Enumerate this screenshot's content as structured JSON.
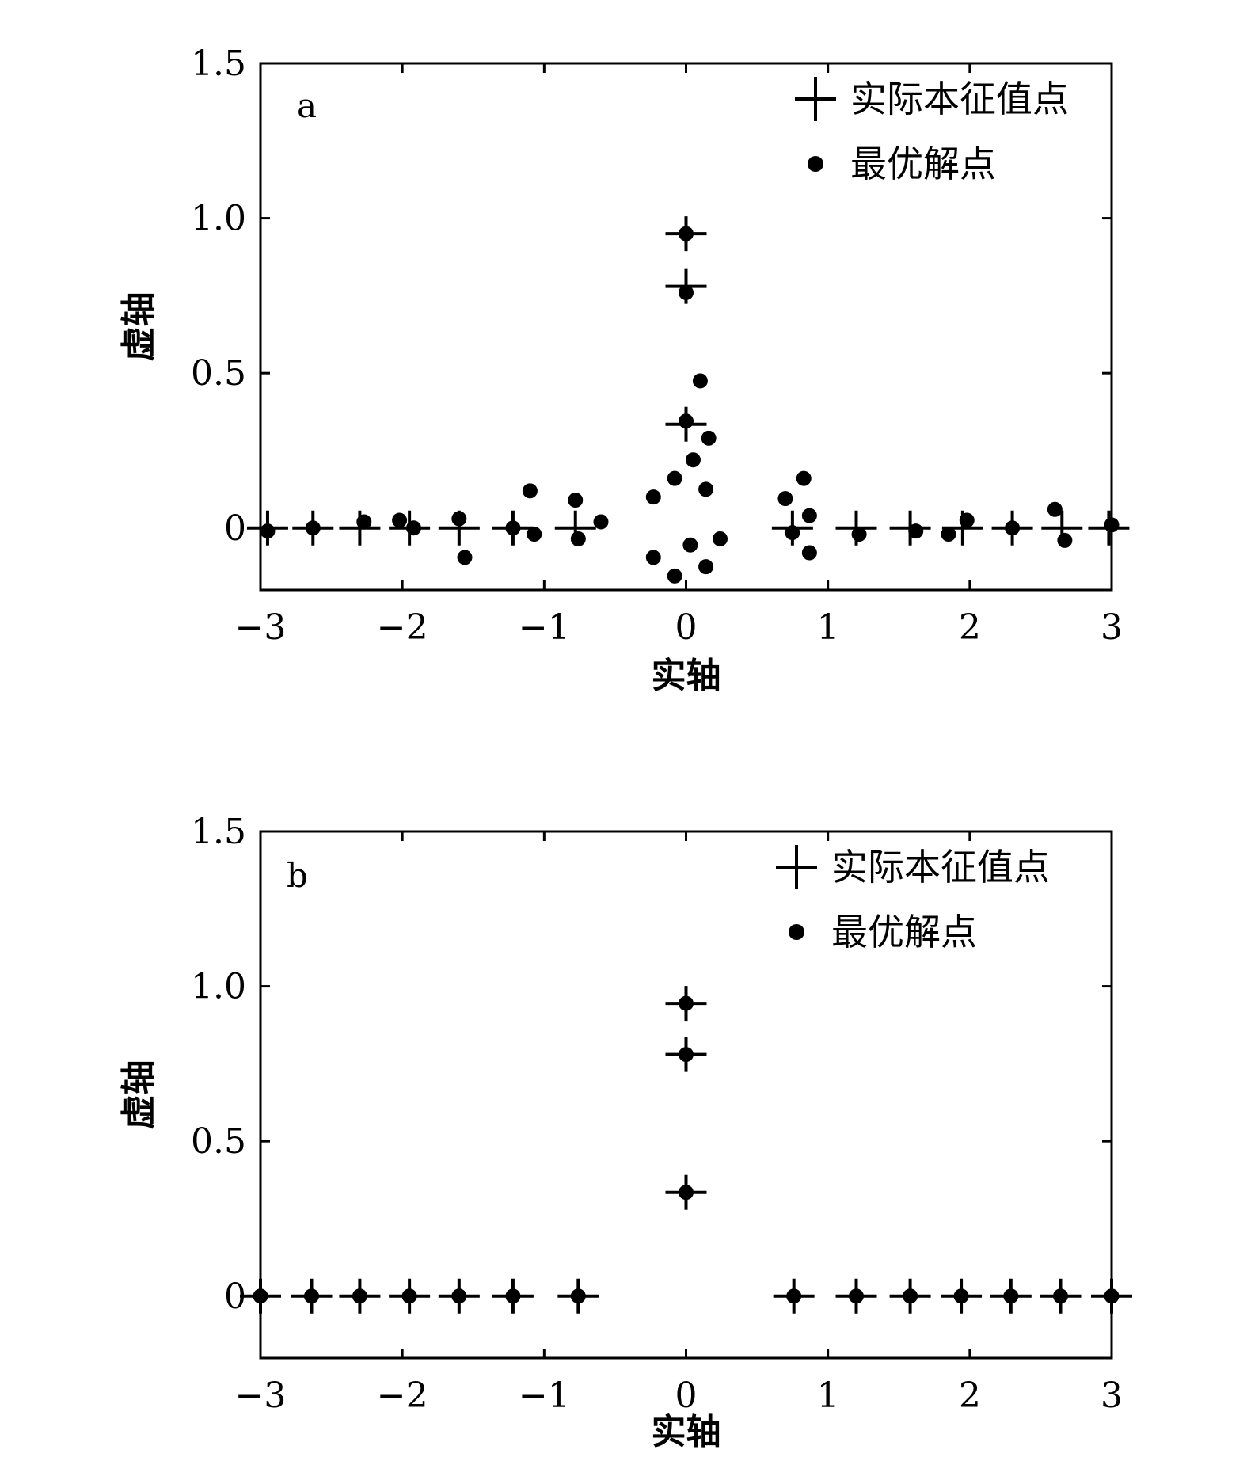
{
  "chart_data": [
    {
      "type": "scatter",
      "panel_label": "a",
      "xlabel": "实轴",
      "ylabel": "虚轴",
      "xlim": [
        -3,
        3
      ],
      "ylim": [
        -0.2,
        1.5
      ],
      "xticks": [
        -3,
        -2,
        -1,
        0,
        1,
        2,
        3
      ],
      "xtick_labels": [
        "−3",
        "−2",
        "−1",
        "0",
        "1",
        "2",
        "3"
      ],
      "yticks": [
        0,
        0.5,
        1.0,
        1.5
      ],
      "ytick_labels": [
        "0",
        "0.5",
        "1.0",
        "1.5"
      ],
      "legend_position": "top-right",
      "series": [
        {
          "name": "实际本征值点",
          "marker": "plus",
          "points": [
            [
              -2.95,
              0
            ],
            [
              -2.63,
              0
            ],
            [
              -2.3,
              0
            ],
            [
              -1.95,
              0
            ],
            [
              -1.6,
              0
            ],
            [
              -1.22,
              0
            ],
            [
              -0.78,
              0
            ],
            [
              0,
              0.95
            ],
            [
              0,
              0.78
            ],
            [
              0,
              0.335
            ],
            [
              0.75,
              0
            ],
            [
              1.2,
              0
            ],
            [
              1.58,
              0
            ],
            [
              1.95,
              0
            ],
            [
              2.3,
              0
            ],
            [
              2.65,
              0
            ],
            [
              2.98,
              0
            ]
          ]
        },
        {
          "name": "最优解点",
          "marker": "dot",
          "points": [
            [
              -2.95,
              -0.01
            ],
            [
              -2.63,
              0
            ],
            [
              -2.27,
              0.02
            ],
            [
              -2.02,
              0.025
            ],
            [
              -1.92,
              0
            ],
            [
              -1.6,
              0.03
            ],
            [
              -1.56,
              -0.095
            ],
            [
              -1.22,
              0
            ],
            [
              -1.1,
              0.12
            ],
            [
              -1.07,
              -0.02
            ],
            [
              -0.78,
              0.09
            ],
            [
              -0.76,
              -0.035
            ],
            [
              -0.6,
              0.02
            ],
            [
              -0.23,
              0.1
            ],
            [
              -0.23,
              -0.095
            ],
            [
              -0.08,
              0.16
            ],
            [
              -0.08,
              -0.155
            ],
            [
              0,
              0.95
            ],
            [
              0,
              0.76
            ],
            [
              0,
              0.345
            ],
            [
              0.03,
              -0.055
            ],
            [
              0.05,
              0.22
            ],
            [
              0.1,
              0.475
            ],
            [
              0.14,
              0.125
            ],
            [
              0.14,
              -0.125
            ],
            [
              0.16,
              0.29
            ],
            [
              0.24,
              -0.035
            ],
            [
              0.7,
              0.095
            ],
            [
              0.75,
              -0.015
            ],
            [
              0.83,
              0.16
            ],
            [
              0.87,
              0.04
            ],
            [
              0.87,
              -0.08
            ],
            [
              1.22,
              -0.02
            ],
            [
              1.62,
              -0.01
            ],
            [
              1.85,
              -0.02
            ],
            [
              1.98,
              0.025
            ],
            [
              2.3,
              0
            ],
            [
              2.6,
              0.06
            ],
            [
              2.67,
              -0.04
            ],
            [
              3.0,
              0.01
            ]
          ]
        }
      ]
    },
    {
      "type": "scatter",
      "panel_label": "b",
      "xlabel": "实轴",
      "ylabel": "虚轴",
      "xlim": [
        -3,
        3
      ],
      "ylim": [
        -0.2,
        1.5
      ],
      "xticks": [
        -3,
        -2,
        -1,
        0,
        1,
        2,
        3
      ],
      "xtick_labels": [
        "−3",
        "−2",
        "−1",
        "0",
        "1",
        "2",
        "3"
      ],
      "yticks": [
        0,
        0.5,
        1.0,
        1.5
      ],
      "ytick_labels": [
        "0",
        "0.5",
        "1.0",
        "1.5"
      ],
      "legend_position": "top-right",
      "series": [
        {
          "name": "实际本征值点",
          "marker": "plus",
          "points": [
            [
              -3,
              0
            ],
            [
              -2.64,
              0
            ],
            [
              -2.3,
              0
            ],
            [
              -1.95,
              0
            ],
            [
              -1.6,
              0
            ],
            [
              -1.22,
              0
            ],
            [
              -0.76,
              0
            ],
            [
              0,
              0.945
            ],
            [
              0,
              0.78
            ],
            [
              0,
              0.335
            ],
            [
              0.76,
              0
            ],
            [
              1.2,
              0
            ],
            [
              1.58,
              0
            ],
            [
              1.94,
              0
            ],
            [
              2.29,
              0
            ],
            [
              2.64,
              0
            ],
            [
              3,
              0
            ]
          ]
        },
        {
          "name": "最优解点",
          "marker": "dot",
          "points": [
            [
              -3,
              0
            ],
            [
              -2.64,
              0
            ],
            [
              -2.3,
              0
            ],
            [
              -1.95,
              0
            ],
            [
              -1.6,
              0
            ],
            [
              -1.22,
              0
            ],
            [
              -0.76,
              0
            ],
            [
              0,
              0.945
            ],
            [
              0,
              0.78
            ],
            [
              0,
              0.335
            ],
            [
              0.76,
              0
            ],
            [
              1.2,
              0
            ],
            [
              1.58,
              0
            ],
            [
              1.94,
              0
            ],
            [
              2.29,
              0
            ],
            [
              2.64,
              0
            ],
            [
              3,
              0
            ]
          ]
        }
      ]
    }
  ]
}
